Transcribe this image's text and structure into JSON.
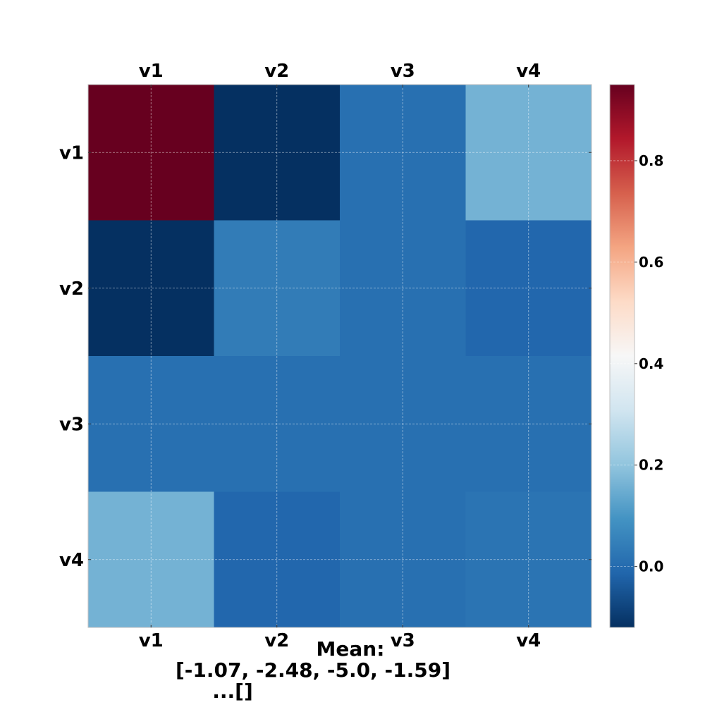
{
  "chart_data": {
    "type": "heatmap",
    "title": "",
    "x_labels": [
      "v1",
      "v2",
      "v3",
      "v4"
    ],
    "y_labels": [
      "v1",
      "v2",
      "v3",
      "v4"
    ],
    "values": [
      [
        0.95,
        -0.12,
        0.01,
        0.16
      ],
      [
        -0.12,
        0.04,
        0.01,
        -0.01
      ],
      [
        0.01,
        0.01,
        0.01,
        0.01
      ],
      [
        0.16,
        -0.01,
        0.01,
        0.02
      ]
    ],
    "colormap": "RdBu_r",
    "vmin": -0.12,
    "vmax": 0.95,
    "colorbar_ticks": [
      "0.0",
      "0.2",
      "0.4",
      "0.6",
      "0.8"
    ],
    "colorbar_tick_values": [
      0.0,
      0.2,
      0.4,
      0.6,
      0.8
    ],
    "grid": true,
    "annotation_lines": [
      "Mean:",
      "[-1.07, -2.48, -5.0, -1.59]",
      "...[]"
    ]
  }
}
